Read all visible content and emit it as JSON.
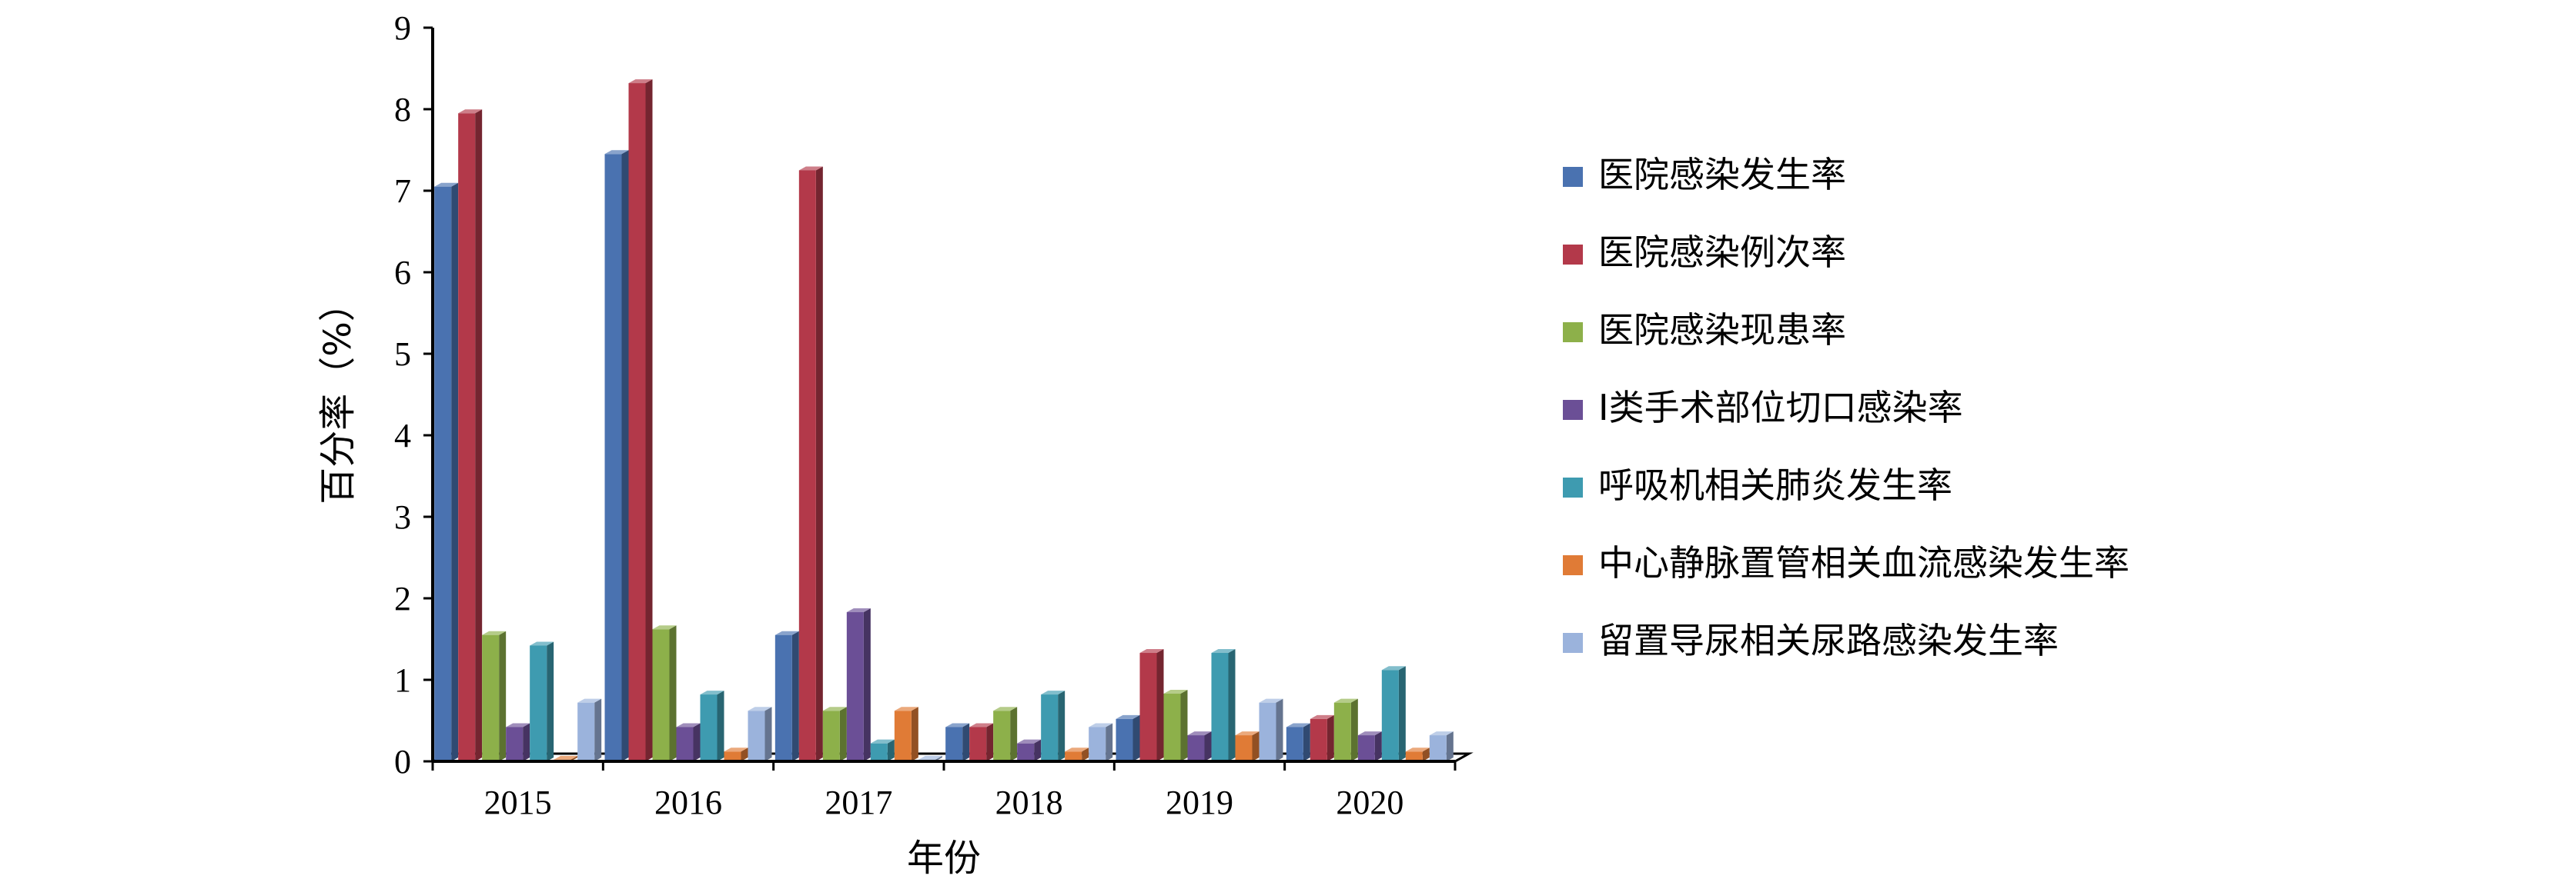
{
  "chart_data": {
    "type": "bar",
    "title": "",
    "xlabel": "年份",
    "ylabel": "百分率（%）",
    "ylim": [
      0,
      9
    ],
    "yticks": [
      "0",
      "1",
      "2",
      "3",
      "4",
      "5",
      "6",
      "7",
      "8",
      "9"
    ],
    "categories": [
      "2015",
      "2016",
      "2017",
      "2018",
      "2019",
      "2020"
    ],
    "legend_position": "right",
    "series": [
      {
        "name": "医院感染发生率",
        "color": "#4a72b0",
        "values": [
          7.05,
          7.45,
          1.55,
          0.42,
          0.52,
          0.42
        ]
      },
      {
        "name": "医院感染例次率",
        "color": "#b3394a",
        "values": [
          7.95,
          8.32,
          7.25,
          0.42,
          1.33,
          0.52
        ]
      },
      {
        "name": "医院感染现患率",
        "color": "#8db04a",
        "values": [
          1.55,
          1.62,
          0.62,
          0.62,
          0.83,
          0.72
        ]
      },
      {
        "name": "Ⅰ类手术部位切口感染率",
        "color": "#6b4f96",
        "values": [
          0.42,
          0.42,
          1.83,
          0.22,
          0.32,
          0.32
        ]
      },
      {
        "name": "呼吸机相关肺炎发生率",
        "color": "#3e9bb0",
        "values": [
          1.42,
          0.82,
          0.22,
          0.82,
          1.33,
          1.12
        ]
      },
      {
        "name": "中心静脉置管相关血流感染发生率",
        "color": "#e07b36",
        "values": [
          0.02,
          0.12,
          0.62,
          0.12,
          0.32,
          0.12
        ]
      },
      {
        "name": "留置导尿相关尿路感染发生率",
        "color": "#9bb3dc",
        "values": [
          0.72,
          0.62,
          0.02,
          0.42,
          0.72,
          0.32
        ]
      }
    ]
  }
}
